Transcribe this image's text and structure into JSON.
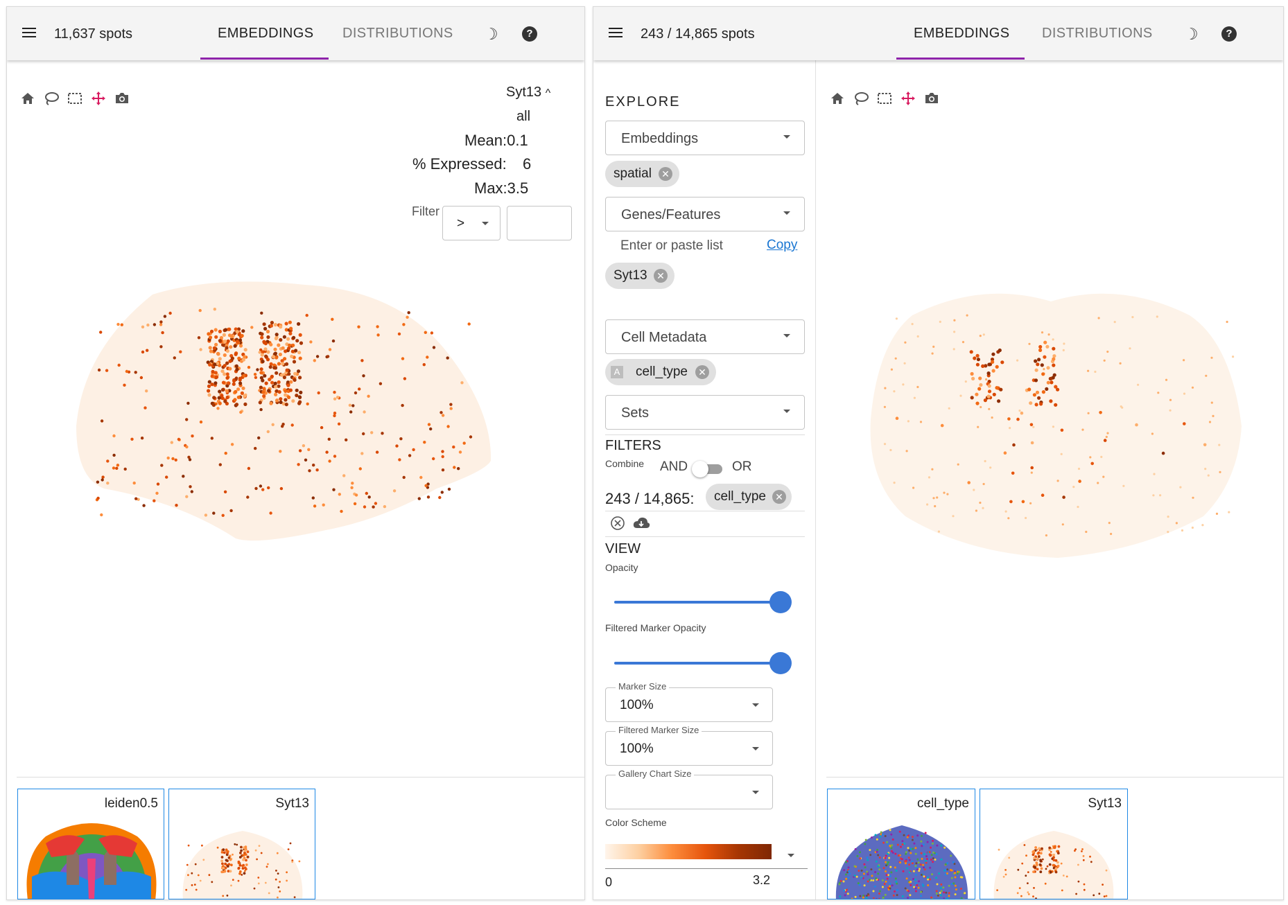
{
  "left_pane": {
    "spots_text": "11,637 spots",
    "tabs": [
      "EMBEDDINGS",
      "DISTRIBUTIONS"
    ],
    "active_tab": "EMBEDDINGS",
    "gene": "Syt13",
    "gene_caret": "^",
    "stats": {
      "subset": "all",
      "mean": "Mean:0.1",
      "expressed_label": "% Expressed:",
      "expressed_value": "6",
      "max": "Max:3.5"
    },
    "filter": {
      "label": "Filter",
      "operator": ">",
      "value": ""
    },
    "gallery": [
      {
        "label": "leiden0.5"
      },
      {
        "label": "Syt13"
      }
    ]
  },
  "right_pane": {
    "spots_text": "243 / 14,865 spots",
    "tabs": [
      "EMBEDDINGS",
      "DISTRIBUTIONS"
    ],
    "active_tab": "EMBEDDINGS",
    "explore": {
      "title": "EXPLORE",
      "embeddings_label": "Embeddings",
      "embeddings_chip": "spatial",
      "genes_label": "Genes/Features",
      "genes_placeholder": "Enter or paste list",
      "copy_link": "Copy",
      "gene_chip": "Syt13",
      "metadata_label": "Cell Metadata",
      "metadata_chip": "cell_type",
      "metadata_chip_icon": "A",
      "sets_label": "Sets"
    },
    "filters": {
      "title": "FILTERS",
      "combine_label": "Combine",
      "and_label": "AND",
      "or_label": "OR",
      "count_text": "243 / 14,865:",
      "chip": "cell_type"
    },
    "view": {
      "title": "VIEW",
      "opacity_label": "Opacity",
      "opacity_value": 1.0,
      "filtered_opacity_label": "Filtered Marker Opacity",
      "filtered_opacity_value": 1.0,
      "marker_size_label": "Marker Size",
      "marker_size_value": "100%",
      "filtered_marker_size_label": "Filtered Marker Size",
      "filtered_marker_size_value": "100%",
      "gallery_size_label": "Gallery Chart Size",
      "gallery_size_value": "",
      "color_scheme_label": "Color Scheme",
      "color_min": "0",
      "color_max": "3.2"
    },
    "gallery": [
      {
        "label": "cell_type"
      },
      {
        "label": "Syt13"
      }
    ]
  },
  "colors": {
    "accent_tab": "#8e24aa",
    "slider": "#3a78d6",
    "gradient_low": "#fff5eb",
    "gradient_mid": "#e6550d",
    "gradient_high": "#7f2704",
    "tool_active": "#d81b60"
  }
}
